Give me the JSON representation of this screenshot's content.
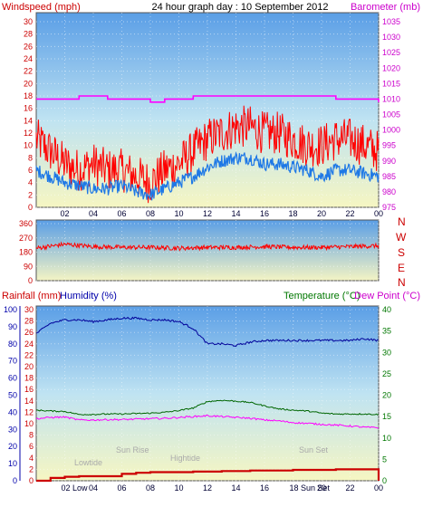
{
  "header": {
    "left_label": "Windspeed (mph)",
    "title": "24 hour graph day : 10 September 2012",
    "right_label": "Barometer (mb)"
  },
  "lower_header": {
    "rain_label": "Rainfall (mm)",
    "humidity_label": "Humidity (%)",
    "temp_label": "Temperature (°C)",
    "dew_label": "Dew Point (°C)"
  },
  "compass": [
    "N",
    "W",
    "S",
    "E",
    "N"
  ],
  "annotations": {
    "lowtide1": "Lowtide",
    "sunrise": "Sun Rise",
    "hightide": "Hightide",
    "sunset": "Sun Set",
    "low_x": "02 Low",
    "sun_x": "18 Sun Set"
  },
  "x_ticks": [
    "02",
    "04",
    "06",
    "08",
    "10",
    "12",
    "14",
    "16",
    "18",
    "20",
    "22",
    "00"
  ],
  "colors": {
    "wind_gust": "#ff0000",
    "wind_avg": "#1e78e6",
    "barometer": "#ff00ff",
    "direction": "#ff0000",
    "humidity": "#000099",
    "temperature": "#006600",
    "dewpoint": "#ff00ff",
    "rain": "#cc0000",
    "axis_left": "#cc0000",
    "axis_right": "#cc00cc",
    "axis_green": "#007700",
    "axis_blue": "#0000aa"
  },
  "chart_data": [
    {
      "type": "line",
      "title": "24 hour graph day : 10 September 2012",
      "hours": [
        0,
        1,
        2,
        3,
        4,
        5,
        6,
        7,
        8,
        9,
        10,
        11,
        12,
        13,
        14,
        15,
        16,
        17,
        18,
        19,
        20,
        21,
        22,
        23,
        24
      ],
      "series": [
        {
          "name": "Windspeed (mph)",
          "axis": "left",
          "values": [
            11,
            9,
            7,
            6,
            7,
            6,
            6,
            5,
            4,
            6,
            7,
            9,
            11,
            12,
            13,
            13,
            12,
            12,
            11,
            10,
            10,
            11,
            11,
            10,
            9
          ]
        },
        {
          "name": "Windspeed (mph)",
          "axis": "left",
          "values": [
            6,
            5,
            4,
            3.5,
            3,
            3,
            3.5,
            2.5,
            2,
            3,
            4,
            5,
            6.5,
            7.5,
            8,
            8,
            7,
            7,
            6.5,
            6,
            5,
            6,
            6,
            5.5,
            5
          ]
        },
        {
          "name": "Barometer (mb)",
          "axis": "right",
          "values": [
            1010,
            1010,
            1010,
            1011,
            1011,
            1010,
            1010,
            1010,
            1009,
            1010,
            1010,
            1011,
            1011,
            1011,
            1011,
            1011,
            1011,
            1011,
            1011,
            1011,
            1011,
            1010,
            1010,
            1010,
            1009
          ]
        }
      ],
      "y_left_ticks": [
        "0",
        "2",
        "4",
        "6",
        "8",
        "10",
        "12",
        "14",
        "16",
        "18",
        "20",
        "22",
        "24",
        "26",
        "28",
        "30"
      ],
      "y_right_ticks": [
        "975",
        "980",
        "985",
        "990",
        "995",
        "1000",
        "1005",
        "1010",
        "1015",
        "1020",
        "1025",
        "1030",
        "1035"
      ],
      "ylim_left": [
        0,
        30
      ],
      "ylim_right": [
        975,
        1035
      ]
    },
    {
      "type": "line",
      "hours": [
        0,
        2,
        4,
        6,
        8,
        10,
        12,
        14,
        16,
        18,
        20,
        22,
        24
      ],
      "series": [
        {
          "name": "Wind direction",
          "values": [
            205,
            230,
            215,
            210,
            210,
            205,
            210,
            210,
            215,
            210,
            210,
            215,
            220
          ]
        }
      ],
      "y_ticks": [
        "0",
        "90",
        "180",
        "270",
        "360"
      ],
      "ylim": [
        0,
        360
      ]
    },
    {
      "type": "line",
      "hours": [
        0,
        1,
        2,
        3,
        4,
        5,
        6,
        7,
        8,
        9,
        10,
        11,
        12,
        13,
        14,
        15,
        16,
        17,
        18,
        19,
        20,
        21,
        22,
        23,
        24
      ],
      "series": [
        {
          "name": "Humidity (%)",
          "axis": "humidity",
          "values": [
            86,
            92,
            94,
            94,
            93,
            94,
            95,
            95,
            94,
            94,
            93,
            89,
            80,
            80,
            79,
            81,
            82,
            82,
            82,
            82,
            82,
            82,
            82,
            83,
            82
          ]
        },
        {
          "name": "Temperature (°C)",
          "axis": "temp",
          "values": [
            16.5,
            16.3,
            16.2,
            15.5,
            15.5,
            15.6,
            15.6,
            15.7,
            15.8,
            16,
            16.4,
            17,
            18.5,
            18.8,
            18.6,
            18.3,
            17.5,
            16.8,
            16.5,
            16.3,
            15.8,
            15.6,
            15.6,
            15.6,
            15.5
          ]
        },
        {
          "name": "Dew Point (°C)",
          "axis": "temp",
          "values": [
            14.5,
            14.8,
            14.9,
            14.2,
            14.2,
            14.3,
            14.3,
            14.4,
            14.5,
            14.6,
            14.8,
            15,
            15.2,
            15,
            14.8,
            14.6,
            14.2,
            14,
            13.6,
            13.4,
            13.2,
            13,
            12.8,
            12.5,
            12.4
          ]
        },
        {
          "name": "Rainfall (mm)",
          "axis": "rain",
          "values": [
            0,
            0.5,
            0.7,
            0.8,
            0.8,
            0.8,
            1.2,
            1.4,
            1.5,
            1.5,
            1.5,
            1.6,
            1.6,
            1.7,
            1.7,
            1.8,
            1.8,
            1.8,
            1.9,
            1.9,
            1.9,
            2,
            2,
            2,
            2
          ]
        }
      ],
      "y_humidity_ticks": [
        "0",
        "10",
        "20",
        "30",
        "40",
        "50",
        "60",
        "70",
        "80",
        "90",
        "100"
      ],
      "y_rain_ticks": [
        "0",
        "2",
        "4",
        "6",
        "8",
        "10",
        "12",
        "14",
        "16",
        "18",
        "20",
        "22",
        "24",
        "26",
        "28",
        "30"
      ],
      "y_temp_ticks": [
        "0",
        "5",
        "10",
        "15",
        "20",
        "25",
        "30",
        "35",
        "40"
      ],
      "ylim_humidity": [
        0,
        100
      ],
      "ylim_rain": [
        0,
        30
      ],
      "ylim_temp": [
        0,
        40
      ]
    }
  ]
}
